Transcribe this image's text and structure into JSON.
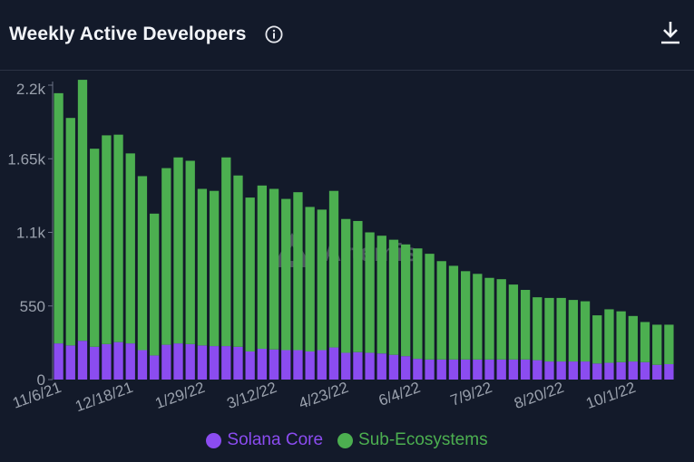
{
  "header": {
    "title": "Weekly Active Developers",
    "info_icon": "info-icon",
    "download_icon": "download-icon"
  },
  "colors": {
    "background": "#131a2a",
    "solana_core": "#8b4cf0",
    "sub_ecosystems": "#4caf50",
    "axis_text": "#9aa1ad"
  },
  "watermark": "Artemis",
  "legend": {
    "items": [
      {
        "label": "Solana Core",
        "color": "#8b4cf0"
      },
      {
        "label": "Sub-Ecosystems",
        "color": "#4caf50"
      }
    ]
  },
  "chart_data": {
    "type": "bar",
    "stacked": true,
    "ylim": [
      0,
      2200
    ],
    "yticks": [
      0,
      550,
      1100,
      1650,
      2200
    ],
    "ytick_labels": [
      "0",
      "550",
      "1.1k",
      "1.65k",
      "2.2k"
    ],
    "xtick_labels": [
      {
        "index": 0,
        "label": "11/6/21"
      },
      {
        "index": 6,
        "label": "12/18/21"
      },
      {
        "index": 12,
        "label": "1/29/22"
      },
      {
        "index": 18,
        "label": "3/12/22"
      },
      {
        "index": 24,
        "label": "4/23/22"
      },
      {
        "index": 30,
        "label": "6/4/22"
      },
      {
        "index": 36,
        "label": "7/9/22"
      },
      {
        "index": 42,
        "label": "8/20/22"
      },
      {
        "index": 48,
        "label": "10/1/22"
      }
    ],
    "grid": false,
    "legend_position": "bottom",
    "series": [
      {
        "name": "Solana Core",
        "values": [
          270,
          255,
          290,
          245,
          265,
          280,
          270,
          220,
          180,
          260,
          270,
          265,
          255,
          250,
          250,
          245,
          210,
          230,
          225,
          220,
          220,
          210,
          220,
          240,
          200,
          205,
          200,
          195,
          185,
          175,
          155,
          150,
          150,
          150,
          150,
          150,
          150,
          150,
          150,
          150,
          145,
          135,
          135,
          135,
          135,
          120,
          125,
          130,
          135,
          130,
          110,
          115
        ]
      },
      {
        "name": "Sub-Ecosystems",
        "values": [
          1870,
          1700,
          1950,
          1480,
          1560,
          1550,
          1420,
          1300,
          1060,
          1320,
          1390,
          1370,
          1170,
          1160,
          1410,
          1280,
          1150,
          1220,
          1200,
          1130,
          1180,
          1080,
          1050,
          1170,
          1000,
          980,
          900,
          880,
          860,
          835,
          825,
          790,
          735,
          700,
          660,
          640,
          610,
          600,
          560,
          520,
          470,
          475,
          475,
          460,
          450,
          360,
          400,
          380,
          340,
          300,
          300,
          295
        ]
      }
    ]
  }
}
